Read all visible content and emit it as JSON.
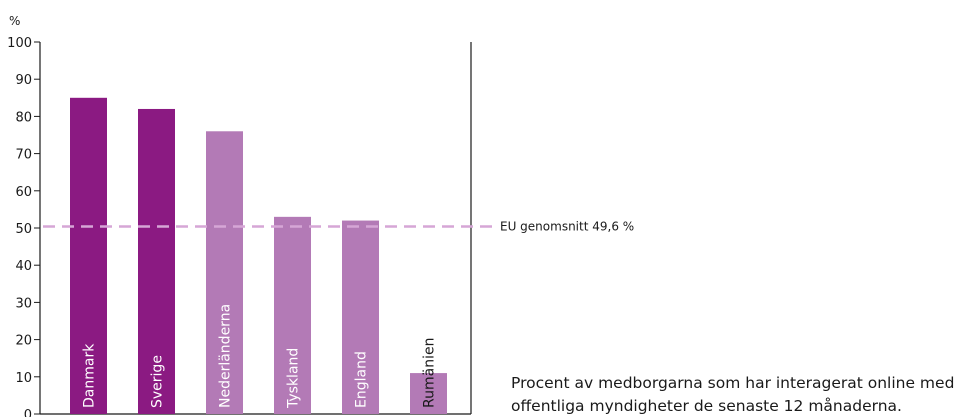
{
  "chart_data": {
    "type": "bar",
    "ylabel": "%",
    "ylim": [
      0,
      100
    ],
    "yticks": [
      0,
      10,
      20,
      30,
      40,
      50,
      60,
      70,
      80,
      90,
      100
    ],
    "categories": [
      "Danmark",
      "Sverige",
      "Nederländerna",
      "Tyskland",
      "England",
      "Rumänien"
    ],
    "values": [
      85,
      82,
      76,
      53,
      52,
      11
    ],
    "bar_colors": [
      "#8b1a82",
      "#8b1a82",
      "#b37ab6",
      "#b37ab6",
      "#b37ab6",
      "#b37ab6"
    ],
    "label_colors": [
      "#ffffff",
      "#ffffff",
      "#ffffff",
      "#ffffff",
      "#ffffff",
      "#1a1a1a"
    ],
    "reference_line": {
      "value": 49.6,
      "label": "EU genomsnitt 49,6 %",
      "color": "#d6a6d6"
    },
    "grid": false,
    "caption": "Procent av medborgarna som har interagerat online med offentliga myndigheter de senaste 12 månaderna."
  }
}
